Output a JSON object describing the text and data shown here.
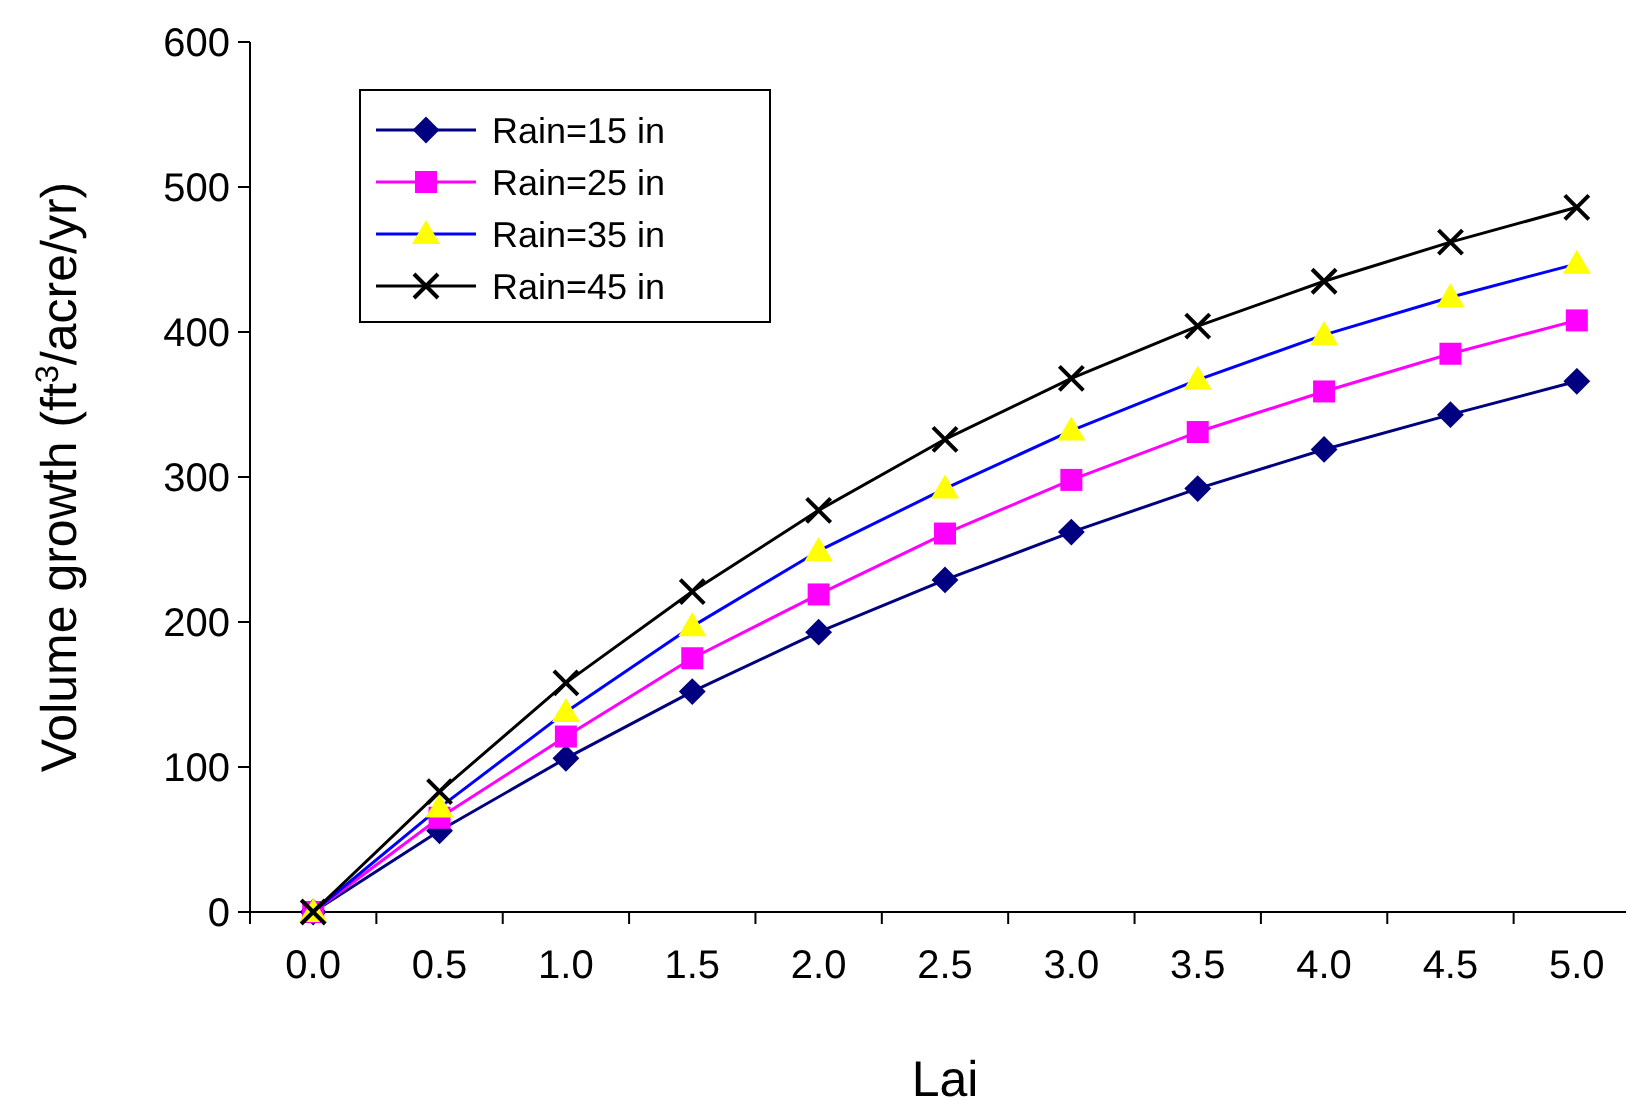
{
  "chart_data": {
    "type": "line",
    "xlabel": "Lai",
    "ylabel": "Volume growth (ft$^{3}$/acre/yr)",
    "categories": [
      "0.0",
      "0.5",
      "1.0",
      "1.5",
      "2.0",
      "2.5",
      "3.0",
      "3.5",
      "4.0",
      "4.5",
      "5.0"
    ],
    "ylim": [
      0,
      600
    ],
    "yticks": [
      0,
      100,
      200,
      300,
      400,
      500,
      600
    ],
    "grid": false,
    "legend": "top left",
    "series": [
      {
        "name": "Rain=15 in",
        "color": "#000080",
        "marker": "diamond",
        "values": [
          0,
          56,
          106,
          152,
          193,
          229,
          262,
          292,
          319,
          343,
          366
        ]
      },
      {
        "name": "Rain=25 in",
        "color": "#ff00ff",
        "marker": "square",
        "values": [
          0,
          65,
          121,
          175,
          219,
          261,
          298,
          331,
          359,
          385,
          408
        ]
      },
      {
        "name": "Rain=35 in",
        "color": "#0000ff",
        "colors": [
          "#ffff00",
          "#ffff00",
          "#ffff00",
          "#ffff00",
          "#ffff00",
          "#ffff00",
          "#ffff00",
          "#ffff00",
          "#ffff00",
          "#ffff00",
          "#ffff00"
        ],
        "marker": "triangle",
        "values": [
          0,
          72,
          138,
          197,
          249,
          292,
          332,
          367,
          398,
          424,
          447
        ]
      },
      {
        "name": "Rain=45 in",
        "color": "#000000",
        "marker": "cross",
        "values": [
          0,
          83,
          158,
          221,
          277,
          326,
          368,
          404,
          435,
          462,
          486
        ]
      }
    ]
  }
}
